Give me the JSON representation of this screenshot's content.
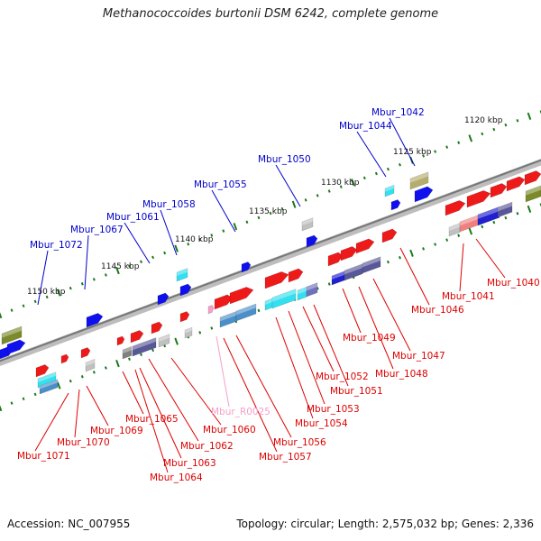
{
  "title": "Methanococcoides burtonii DSM 6242, complete genome",
  "footer": {
    "accession": "Accession: NC_007955",
    "topology": "Topology: circular; Length: 2,575,032 bp; Genes: 2,336"
  },
  "colors": {
    "forward_label": "#0000cc",
    "reverse_label": "#dd0000",
    "rna_label": "#f4a0c8",
    "backbone": "#808080",
    "tick": "#1a7a1a"
  },
  "scale_labels": [
    "1120 kbp",
    "1125 kbp",
    "1130 kbp",
    "1135 kbp",
    "1140 kbp",
    "1145 kbp",
    "1150 kbp"
  ],
  "forward_genes": [
    "Mbur_1042",
    "Mbur_1044",
    "Mbur_1050",
    "Mbur_1055",
    "Mbur_1058",
    "Mbur_1061",
    "Mbur_1067",
    "Mbur_1072"
  ],
  "reverse_genes": [
    "Mbur_1040",
    "Mbur_1041",
    "Mbur_1046",
    "Mbur_1047",
    "Mbur_1048",
    "Mbur_1049",
    "Mbur_1051",
    "Mbur_1052",
    "Mbur_1053",
    "Mbur_1054",
    "Mbur_1056",
    "Mbur_1057",
    "Mbur_1060",
    "Mbur_1062",
    "Mbur_1063",
    "Mbur_1064",
    "Mbur_1065",
    "Mbur_1069",
    "Mbur_1070",
    "Mbur_1071"
  ],
  "rna_genes": [
    "Mbur_R0025"
  ]
}
